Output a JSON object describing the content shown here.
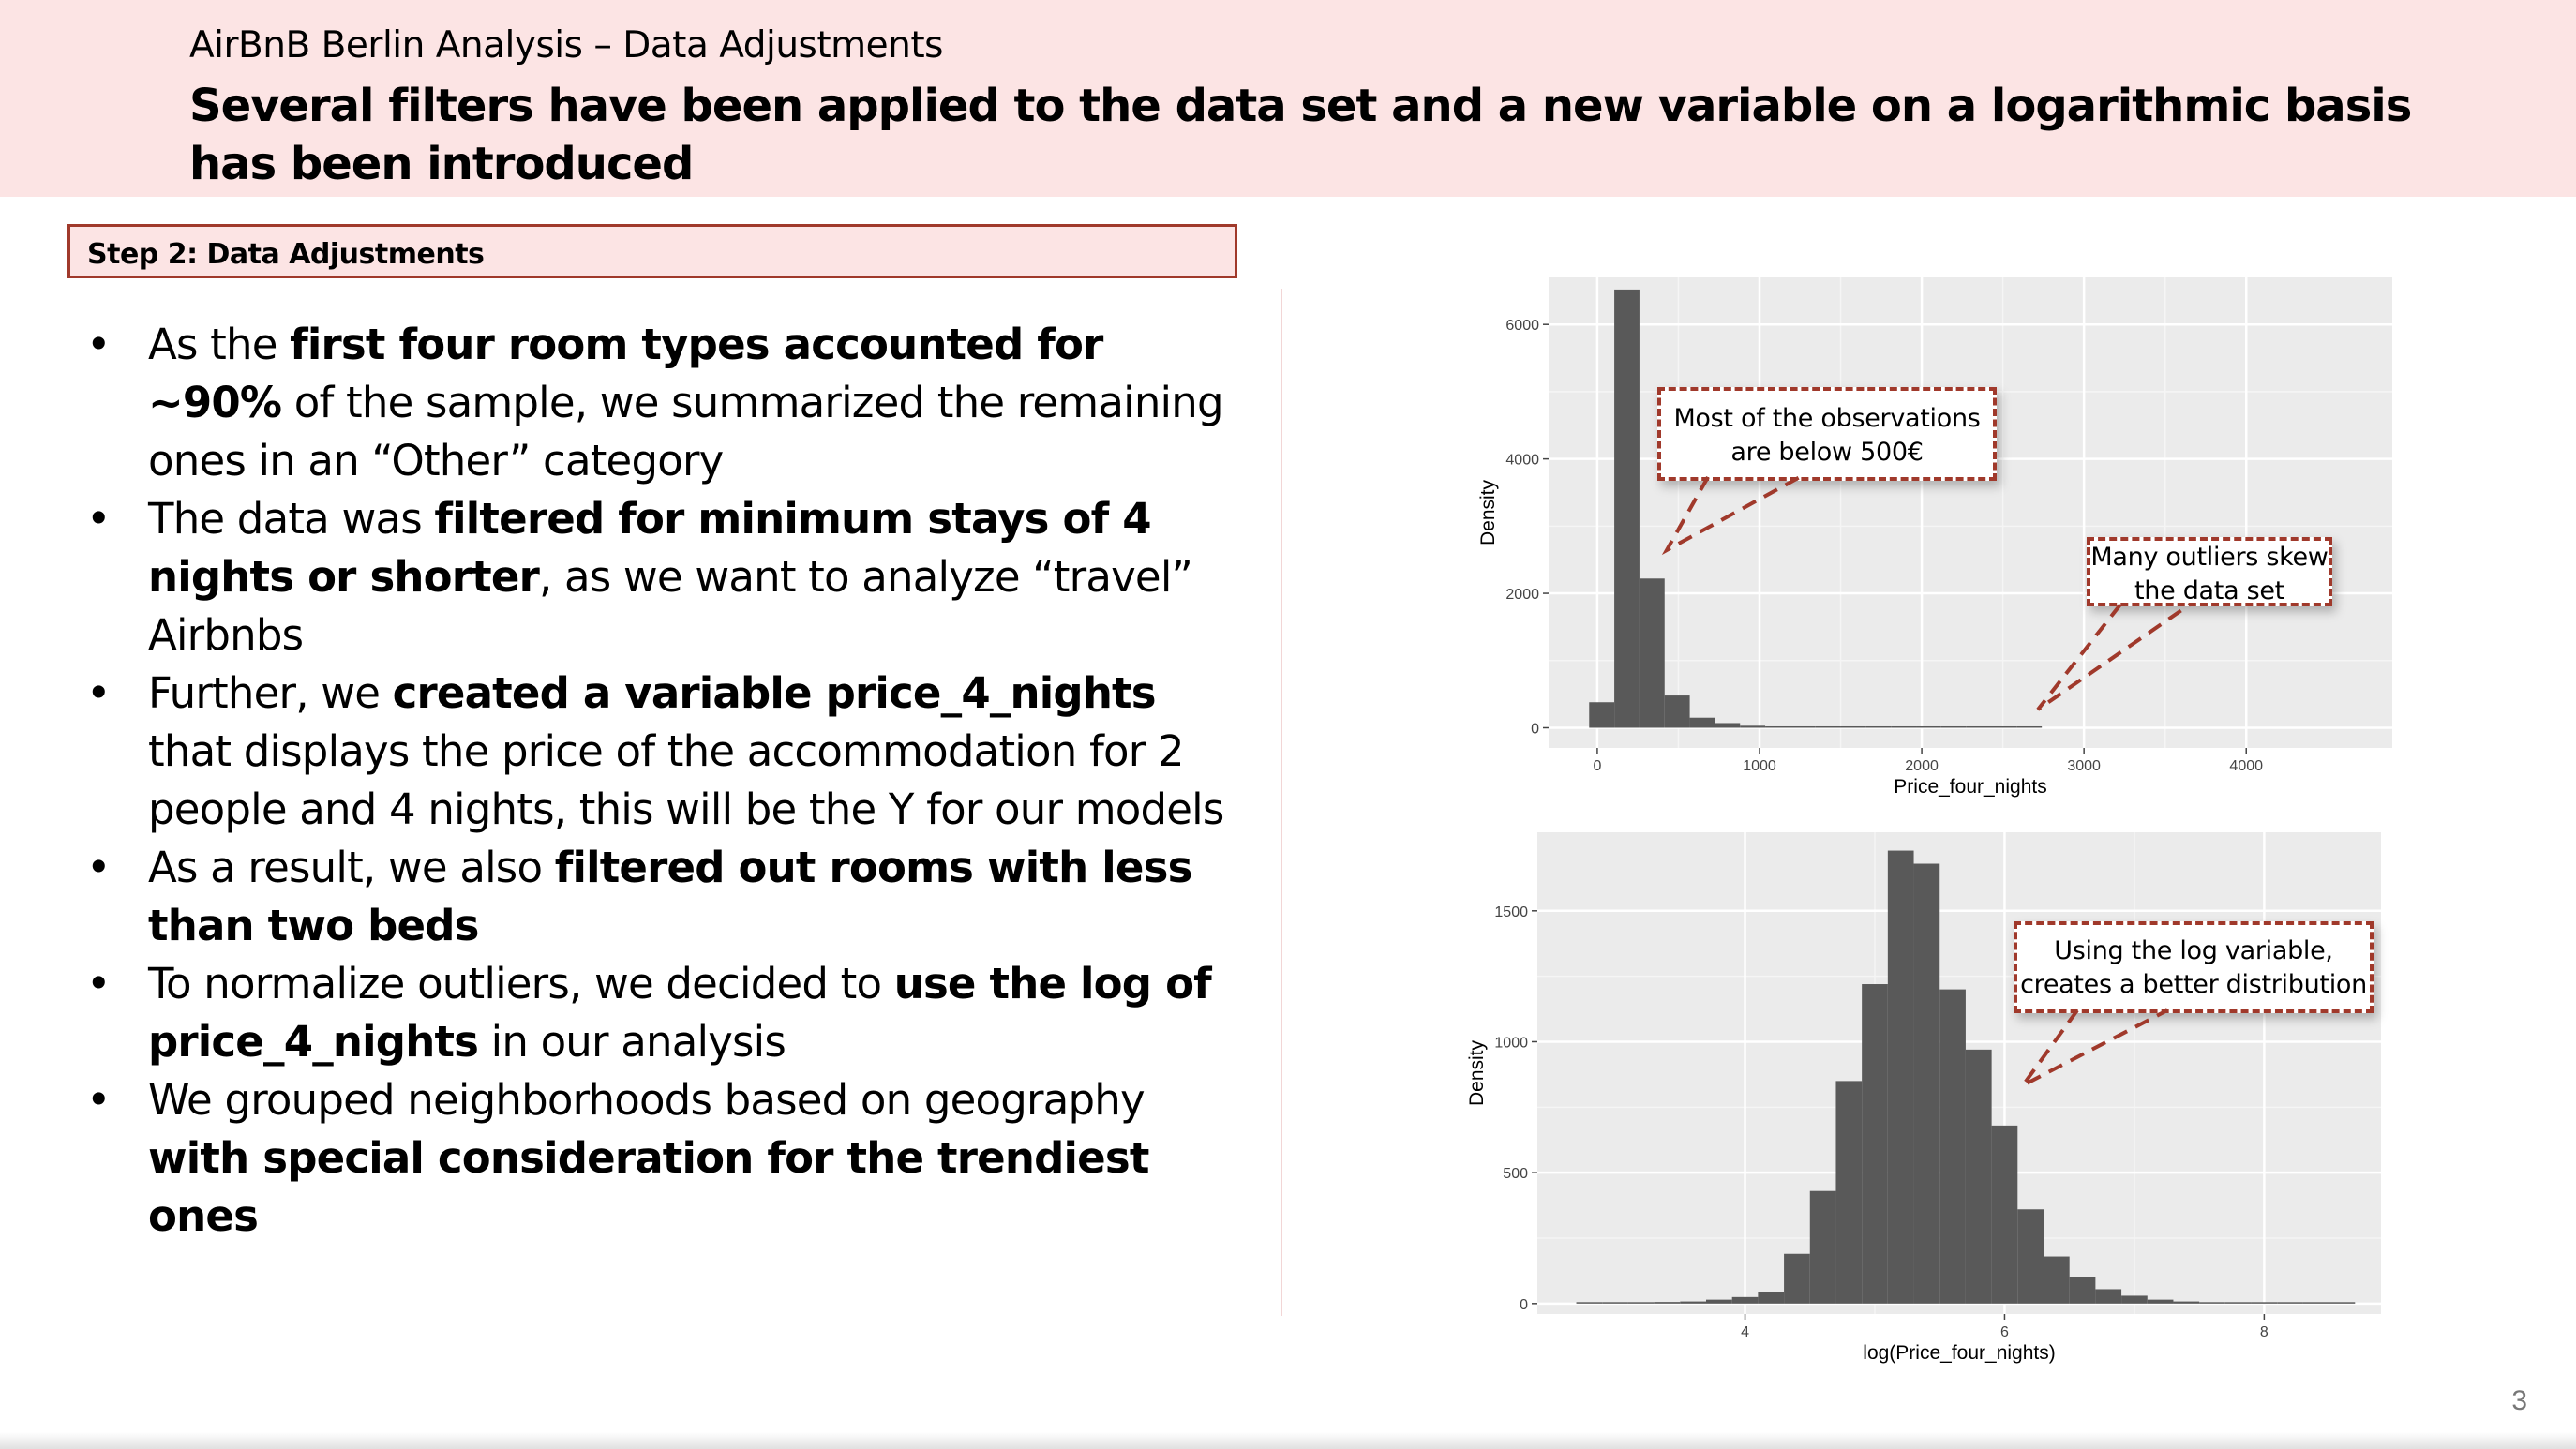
{
  "header": {
    "subtitle": "AirBnB Berlin Analysis – Data Adjustments",
    "title": "Several filters have been applied to the data set and a new variable on a logarithmic basis has been introduced"
  },
  "step_label": "Step 2: Data Adjustments",
  "bullets": [
    {
      "parts": [
        {
          "t": "As the ",
          "b": false
        },
        {
          "t": "first four room types accounted for ~90%",
          "b": true
        },
        {
          "t": " of the sample, we summarized the remaining ones in an “Other” category",
          "b": false
        }
      ]
    },
    {
      "parts": [
        {
          "t": "The data was ",
          "b": false
        },
        {
          "t": "filtered for minimum stays of 4 nights or shorter",
          "b": true
        },
        {
          "t": ", as we want to analyze “travel” Airbnbs",
          "b": false
        }
      ]
    },
    {
      "parts": [
        {
          "t": "Further, we ",
          "b": false
        },
        {
          "t": "created a variable price_4_nights",
          "b": true
        },
        {
          "t": " that displays the price of the accommodation for 2 people and 4 nights, this will be the Y for our models",
          "b": false
        }
      ]
    },
    {
      "parts": [
        {
          "t": "As a result, we also ",
          "b": false
        },
        {
          "t": "filtered out rooms with less than two beds",
          "b": true
        }
      ]
    },
    {
      "parts": [
        {
          "t": "To normalize outliers, we decided to ",
          "b": false
        },
        {
          "t": "use the log of price_4_nights",
          "b": true
        },
        {
          "t": " in our analysis",
          "b": false
        }
      ]
    },
    {
      "parts": [
        {
          "t": "We grouped neighborhoods based on geography ",
          "b": false
        },
        {
          "t": "with special consideration for the trendiest ones",
          "b": true
        }
      ]
    }
  ],
  "callouts": {
    "c1": "Most of the observations are below 500€",
    "c2": "Many outliers skew the data set",
    "c3": "Using the log variable, creates a better distribution"
  },
  "page_number": "3",
  "colors": {
    "header_bg": "#fce4e4",
    "accent": "#a0392b",
    "bar": "#595959",
    "panel": "#ebebeb"
  },
  "chart_data": [
    {
      "type": "bar",
      "xlabel": "Price_four_nights",
      "ylabel": "Density",
      "xlim": [
        -300,
        4900
      ],
      "ylim": [
        -300,
        6700
      ],
      "xticks": [
        0,
        1000,
        2000,
        3000,
        4000
      ],
      "yticks": [
        0,
        2000,
        4000,
        6000
      ],
      "binwidth": 155,
      "x": [
        -50,
        105,
        260,
        415,
        570,
        725,
        880,
        1035,
        1190,
        1345,
        1500,
        1655,
        1810,
        1965,
        2120,
        2275,
        2430,
        2585
      ],
      "values": [
        380,
        6520,
        2220,
        480,
        150,
        70,
        30,
        20,
        15,
        10,
        5,
        5,
        5,
        5,
        8,
        5,
        5,
        5
      ]
    },
    {
      "type": "bar",
      "xlabel": "log(Price_four_nights)",
      "ylabel": "Density",
      "xlim": [
        2.4,
        8.9
      ],
      "ylim": [
        -40,
        1800
      ],
      "xticks": [
        4,
        6,
        8
      ],
      "yticks": [
        0,
        500,
        1000,
        1500
      ],
      "binwidth": 0.2,
      "x": [
        2.7,
        2.9,
        3.1,
        3.3,
        3.5,
        3.7,
        3.9,
        4.1,
        4.3,
        4.5,
        4.7,
        4.9,
        5.1,
        5.3,
        5.5,
        5.7,
        5.9,
        6.1,
        6.3,
        6.5,
        6.7,
        6.9,
        7.1,
        7.3,
        7.5,
        7.7,
        7.9,
        8.1,
        8.3,
        8.5
      ],
      "values": [
        2,
        1,
        4,
        6,
        8,
        15,
        25,
        45,
        190,
        430,
        850,
        1220,
        1730,
        1680,
        1200,
        970,
        680,
        360,
        180,
        100,
        55,
        30,
        15,
        8,
        5,
        3,
        5,
        3,
        2,
        1
      ]
    }
  ]
}
